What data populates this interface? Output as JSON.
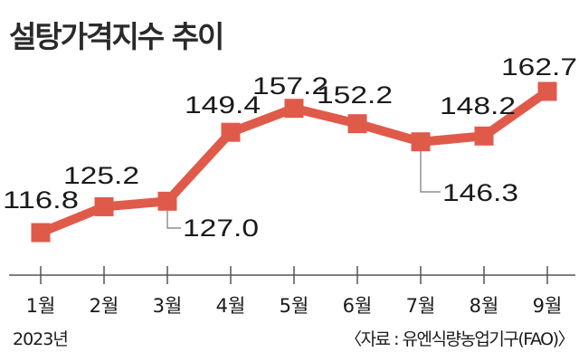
{
  "chart_data": {
    "type": "line",
    "title": "설탕가격지수 추이",
    "categories": [
      "1월",
      "2월",
      "3월",
      "4월",
      "5월",
      "6월",
      "7월",
      "8월",
      "9월"
    ],
    "series": [
      {
        "values": [
          116.8,
          125.2,
          127.0,
          149.4,
          157.2,
          152.2,
          146.3,
          148.2,
          162.7
        ]
      }
    ],
    "value_labels": [
      "116.8",
      "125.2",
      "127.0",
      "149.4",
      "157.2",
      "152.2",
      "146.3",
      "148.2",
      "162.7"
    ],
    "year_label": "2023년",
    "source": "〈자료 : 유엔식량농업기구(FAO)〉",
    "line_color": "#e05a4a",
    "axis_color": "#555555",
    "callout_color": "#777777"
  }
}
